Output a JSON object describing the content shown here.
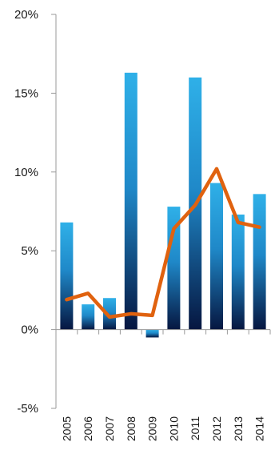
{
  "chart_data": {
    "type": "bar",
    "title": "",
    "xlabel": "",
    "ylabel": "",
    "categories": [
      "2005",
      "2006",
      "2007",
      "2008",
      "2009",
      "2010",
      "2011",
      "2012",
      "2013",
      "2014"
    ],
    "series": [
      {
        "type": "bar",
        "values": [
          6.8,
          1.6,
          2.0,
          16.3,
          -0.5,
          7.8,
          16.0,
          9.3,
          7.3,
          8.6
        ],
        "color_top": "#2fb0e8",
        "color_bottom": "#061640"
      },
      {
        "type": "line",
        "values": [
          1.9,
          2.3,
          0.8,
          1.0,
          0.9,
          6.4,
          7.9,
          10.2,
          6.8,
          6.5
        ],
        "color": "#e0620f"
      }
    ],
    "ylim": [
      -5,
      20
    ],
    "y_ticks": [
      -5,
      0,
      5,
      10,
      15,
      20
    ],
    "y_tick_labels": [
      "-5%",
      "0%",
      "5%",
      "10%",
      "15%",
      "20%"
    ],
    "grid": false,
    "legend": "none"
  }
}
